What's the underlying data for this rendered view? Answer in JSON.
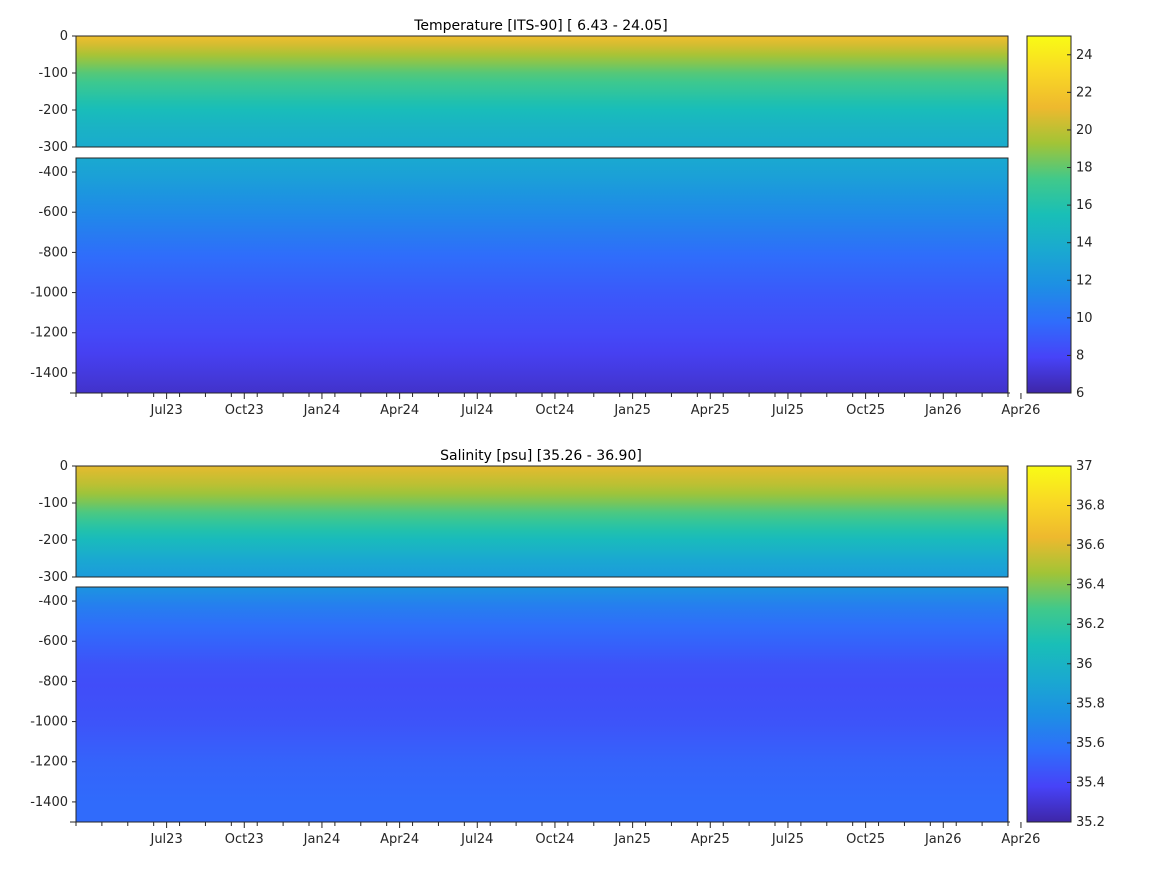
{
  "chart_data": [
    {
      "type": "heatmap",
      "title": "Temperature [ITS-90]   [ 6.43 - 24.05]",
      "xlabel": "",
      "ylabel": "",
      "x_ticks": [
        "Jul23",
        "Oct23",
        "Jan24",
        "Apr24",
        "Jul24",
        "Oct24",
        "Jan25",
        "Apr25",
        "Jul25",
        "Oct25",
        "Jan26",
        "Apr26"
      ],
      "xlim": [
        "2023-04",
        "2026-04"
      ],
      "upper_panel": {
        "ylim": [
          -300,
          0
        ],
        "y_ticks": [
          "0",
          "-100",
          "-200",
          "-300"
        ]
      },
      "lower_panel": {
        "ylim": [
          -1500,
          -330
        ],
        "y_ticks": [
          "-400",
          "-600",
          "-800",
          "-1000",
          "-1200",
          "-1400"
        ]
      },
      "colorbar": {
        "min": 6,
        "max": 25,
        "ticks": [
          "6",
          "8",
          "10",
          "12",
          "14",
          "16",
          "18",
          "20",
          "22",
          "24"
        ]
      },
      "value_range": [
        6.43,
        24.05
      ],
      "depth_profile": [
        {
          "depth": 0,
          "value": 21.5
        },
        {
          "depth": -50,
          "value": 19.5
        },
        {
          "depth": -100,
          "value": 17.8
        },
        {
          "depth": -150,
          "value": 16.6
        },
        {
          "depth": -200,
          "value": 15.3
        },
        {
          "depth": -250,
          "value": 14.4
        },
        {
          "depth": -300,
          "value": 13.8
        },
        {
          "depth": -400,
          "value": 13.2
        },
        {
          "depth": -500,
          "value": 12.2
        },
        {
          "depth": -600,
          "value": 11.4
        },
        {
          "depth": -700,
          "value": 10.7
        },
        {
          "depth": -800,
          "value": 9.9
        },
        {
          "depth": -1000,
          "value": 8.9
        },
        {
          "depth": -1200,
          "value": 8.2
        },
        {
          "depth": -1400,
          "value": 7.3
        },
        {
          "depth": -1500,
          "value": 6.8
        }
      ],
      "grid": false
    },
    {
      "type": "heatmap",
      "title": "Salinity [psu]   [35.26 - 36.90]",
      "xlabel": "",
      "ylabel": "",
      "x_ticks": [
        "Jul23",
        "Oct23",
        "Jan24",
        "Apr24",
        "Jul24",
        "Oct24",
        "Jan25",
        "Apr25",
        "Jul25",
        "Oct25",
        "Jan26",
        "Apr26"
      ],
      "xlim": [
        "2023-04",
        "2026-04"
      ],
      "upper_panel": {
        "ylim": [
          -300,
          0
        ],
        "y_ticks": [
          "0",
          "-100",
          "-200",
          "-300"
        ]
      },
      "lower_panel": {
        "ylim": [
          -1500,
          -330
        ],
        "y_ticks": [
          "-400",
          "-600",
          "-800",
          "-1000",
          "-1200",
          "-1400"
        ]
      },
      "colorbar": {
        "min": 35.2,
        "max": 37,
        "ticks": [
          "35.2",
          "35.4",
          "35.6",
          "35.8",
          "36",
          "36.2",
          "36.4",
          "36.6",
          "36.8",
          "37"
        ]
      },
      "value_range": [
        35.26,
        36.9
      ],
      "depth_profile": [
        {
          "depth": 0,
          "value": 36.62
        },
        {
          "depth": -50,
          "value": 36.52
        },
        {
          "depth": -100,
          "value": 36.38
        },
        {
          "depth": -150,
          "value": 36.22
        },
        {
          "depth": -200,
          "value": 36.06
        },
        {
          "depth": -250,
          "value": 35.92
        },
        {
          "depth": -300,
          "value": 35.82
        },
        {
          "depth": -400,
          "value": 35.68
        },
        {
          "depth": -500,
          "value": 35.58
        },
        {
          "depth": -600,
          "value": 35.52
        },
        {
          "depth": -700,
          "value": 35.45
        },
        {
          "depth": -800,
          "value": 35.42
        },
        {
          "depth": -1000,
          "value": 35.45
        },
        {
          "depth": -1200,
          "value": 35.52
        },
        {
          "depth": -1400,
          "value": 35.55
        },
        {
          "depth": -1500,
          "value": 35.55
        }
      ],
      "grid": false
    }
  ],
  "colormap": [
    "#3e26a8",
    "#4743f8",
    "#2f6dfb",
    "#1d8fe4",
    "#1aa9d0",
    "#19bfb7",
    "#41c98a",
    "#a2c436",
    "#eeb92e",
    "#f9d825",
    "#f9fb15"
  ]
}
